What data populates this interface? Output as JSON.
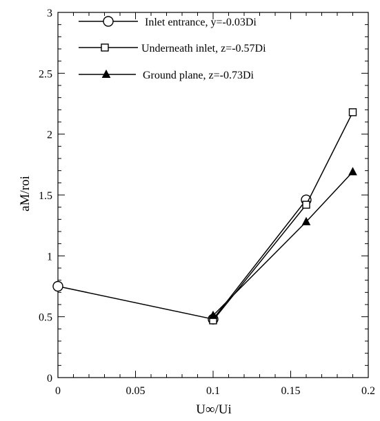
{
  "chart_data": {
    "type": "line",
    "title": "",
    "xlabel": "U∞/Ui",
    "ylabel": "aM/roi",
    "xlim": [
      0,
      0.2
    ],
    "ylim": [
      0,
      3
    ],
    "x_ticks": [
      0,
      0.05,
      0.1,
      0.15,
      0.2
    ],
    "x_tick_labels": [
      "0",
      "0.05",
      "0.1",
      "0.15",
      "0.2"
    ],
    "y_ticks": [
      0,
      0.5,
      1,
      1.5,
      2,
      2.5,
      3
    ],
    "y_tick_labels": [
      "0",
      "0.5",
      "1",
      "1.5",
      "2",
      "2.5",
      "3"
    ],
    "grid": false,
    "legend_position": "top-right",
    "series": [
      {
        "name": "Inlet entrance, y=-0.03Di",
        "marker": "circle",
        "x": [
          0,
          0.1,
          0.16
        ],
        "y": [
          0.75,
          0.48,
          1.46
        ]
      },
      {
        "name": "Underneath inlet, z=-0.57Di",
        "marker": "square",
        "x": [
          0.1,
          0.16,
          0.19
        ],
        "y": [
          0.47,
          1.42,
          2.18
        ]
      },
      {
        "name": "Ground plane, z=-0.73Di",
        "marker": "triangle",
        "x": [
          0.1,
          0.16,
          0.19
        ],
        "y": [
          0.51,
          1.28,
          1.69
        ]
      }
    ]
  }
}
